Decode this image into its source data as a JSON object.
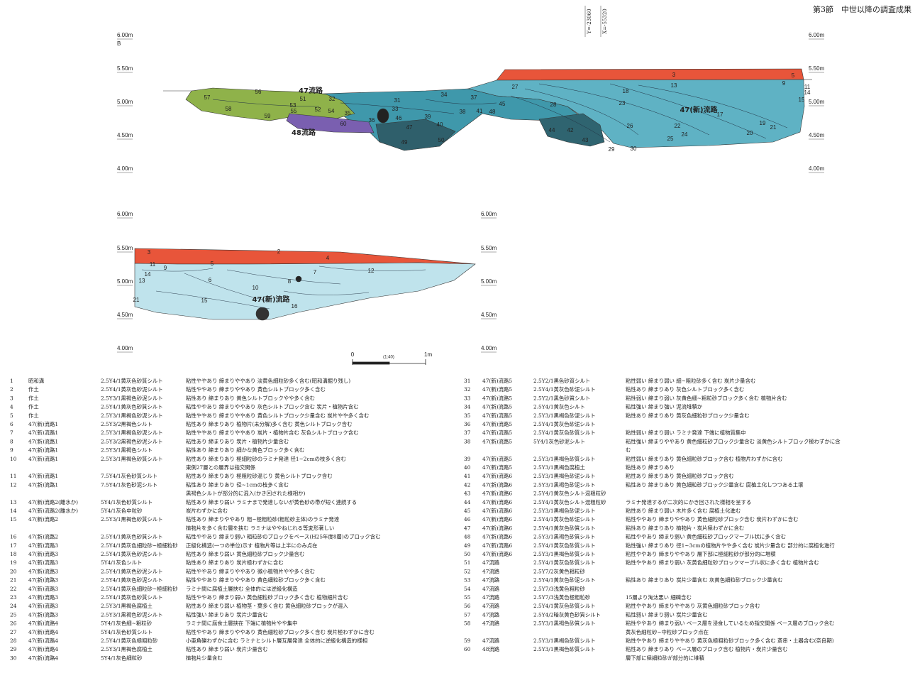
{
  "header": {
    "section": "第3節　中世以降の調査成果"
  },
  "coordinates": [
    "Y=-23060",
    "X=-55320"
  ],
  "section_upper": {
    "point": "B",
    "elevations_left": [
      "6.00m",
      "5.50m",
      "5.00m",
      "4.50m",
      "4.00m"
    ],
    "elevations_right": [
      "6.00m",
      "5.50m",
      "5.00m",
      "4.50m",
      "4.00m"
    ],
    "labels": [
      "3",
      "5",
      "13",
      "9",
      "11",
      "14",
      "15",
      "27",
      "28",
      "18",
      "23",
      "47(新)流路",
      "17",
      "22",
      "26",
      "24",
      "25",
      "20",
      "19",
      "21",
      "44",
      "42",
      "43",
      "29",
      "30",
      "37",
      "34",
      "38",
      "41",
      "48",
      "45",
      "31",
      "32",
      "33",
      "46",
      "39",
      "40",
      "47",
      "50",
      "49",
      "36",
      "35",
      "60",
      "54",
      "52",
      "55",
      "53",
      "51",
      "47流路",
      "56",
      "57",
      "58",
      "59",
      "48流路"
    ]
  },
  "section_lower": {
    "point": "B'",
    "elevations_left": [
      "6.00m",
      "5.50m",
      "5.00m",
      "4.50m",
      "4.00m"
    ],
    "elevations_right": [
      "6.00m",
      "5.50m",
      "5.00m",
      "4.50m",
      "4.00m"
    ],
    "labels": [
      "3",
      "2",
      "4",
      "5",
      "11",
      "9",
      "14",
      "13",
      "6",
      "7",
      "8",
      "12",
      "10",
      "15",
      "47(新)流路",
      "16",
      "21"
    ]
  },
  "scale": {
    "start": "0",
    "ratio": "(1:40)",
    "end": "1m"
  },
  "layers": [
    {
      "no": 1,
      "name": "昭和溝",
      "color": "2.5Y4/1黄灰色砂質シルト",
      "description": [
        "粘性ややあり 締まりややあり 淡黄色細粒砂多く含む(昭和溝掘り残し)"
      ]
    },
    {
      "no": 2,
      "name": "作土",
      "color": "2.5Y4/1黄灰色砂泥シルト",
      "description": [
        "粘性ややあり 締まりややあり 黄色シルトブロック多く含む"
      ]
    },
    {
      "no": 3,
      "name": "作土",
      "color": "2.5Y3/1黒褐色砂泥シルト",
      "description": [
        "粘性あり 締まりあり 黄色シルトブロックやや多く含む"
      ]
    },
    {
      "no": 4,
      "name": "作土",
      "color": "2.5Y4/1黄灰色砂質シルト",
      "description": [
        "粘性ややあり 締まりややあり 灰色シルトブロック含む 炭片・植物片含む"
      ]
    },
    {
      "no": 5,
      "name": "作土",
      "color": "2.5Y3/1黒褐色砂泥シルト",
      "description": [
        "粘性ややあり 締まりややあり 黄色シルトブロック少量含む 炭片やや多く含む"
      ]
    },
    {
      "no": 6,
      "name": "47(新)流路1",
      "color": "2.5Y3/2黒褐色シルト",
      "description": [
        "粘性あり 締まりあり 植物片(未分解)多く含む 黄色シルトブロック含む"
      ]
    },
    {
      "no": 7,
      "name": "47(新)流路1",
      "color": "2.5Y3/1黒褐色砂泥シルト",
      "description": [
        "粘性ややあり 締まりややあり 炭片・植物片含む 灰色シルトブロック含む"
      ]
    },
    {
      "no": 8,
      "name": "47(新)流路1",
      "color": "2.5Y3/2黒褐色砂泥シルト",
      "description": [
        "粘性あり 締まりあり 炭片・植物片少量含む"
      ]
    },
    {
      "no": 9,
      "name": "47(新)流路1",
      "color": "2.5Y3/1黒褐色シルト",
      "description": [
        "粘性あり 締まりあり 細かな黄色ブロック多く含む"
      ]
    },
    {
      "no": 10,
      "name": "47(新)流路1",
      "color": "2.5Y3/1黒褐色砂質シルト",
      "description": [
        "粘性あり 締まりあり 極細粒砂のラミナ発達 径1~2cmの枝多く含む",
        "東側27層との層界は指交関係"
      ]
    },
    {
      "no": 11,
      "name": "47(新)流路1",
      "color": "7.5Y4/1灰色砂質シルト",
      "description": [
        "粘性あり 締まりあり 極粗粒砂混じり 黄色シルトブロック含む"
      ]
    },
    {
      "no": 12,
      "name": "47(新)流路1",
      "color": "7.5Y4/1灰色砂泥シルト",
      "description": [
        "粘性あり 締まりあり 径~1cmの枝多く含む",
        "黒褐色シルトが部分的に混入(かき回された様相か)"
      ]
    },
    {
      "no": 13,
      "name": "47(新)流路2(離水か)",
      "color": "5Y4/1灰色砂質シルト",
      "description": [
        "粘性あり 締まり弱い ラミナまで発達しないが黄色砂の帯が短く連続する"
      ]
    },
    {
      "no": 14,
      "name": "47(新)流路2(離水か)",
      "color": "5Y4/1灰色中粒砂",
      "description": [
        "炭片わずかに含む"
      ]
    },
    {
      "no": 15,
      "name": "47(新)流路2",
      "color": "2.5Y3/1黒褐色砂質シルト",
      "description": [
        "粘性あり 締まりややあり 粗~極粗粒砂(粗粒砂主体)のラミナ発達",
        "植物片を多く含む層を挟む ラミナはややねじれる等変形著しい"
      ]
    },
    {
      "no": 16,
      "name": "47(新)流路2",
      "color": "2.5Y4/1黄灰色砂質シルト",
      "description": [
        "粘性ややあり 締まり弱い 粗粒砂のブロックをベース(H25年度8層)のブロック含む"
      ]
    },
    {
      "no": 17,
      "name": "47(新)流路3",
      "color": "2.5Y4/1黄灰色細粒砂~極細粒砂",
      "description": [
        "正級化構造(一つの単位)示す 植物片等は上半にのみ点在"
      ]
    },
    {
      "no": 18,
      "name": "47(新)流路3",
      "color": "2.5Y4/1黄灰色砂泥シルト",
      "description": [
        "粘性あり 締まり弱い 黄色細粒砂ブロック少量含む"
      ]
    },
    {
      "no": 19,
      "name": "47(新)流路3",
      "color": "5Y4/1灰色シルト",
      "description": [
        "粘性あり 締まりあり 炭片極わずかに含む"
      ]
    },
    {
      "no": 20,
      "name": "47(新)流路3",
      "color": "2.5Y4/1黄灰色砂泥シルト",
      "description": [
        "粘性ややあり 締まりややあり 微小植物片やや多く含む"
      ]
    },
    {
      "no": 21,
      "name": "47(新)流路3",
      "color": "2.5Y4/1黄灰色砂泥シルト",
      "description": [
        "粘性ややあり 締まりややあり 黄色細粒砂ブロック多く含む"
      ]
    },
    {
      "no": 22,
      "name": "47(新)流路3",
      "color": "2.5Y4/1黄灰色細粒砂~極細粒砂",
      "description": [
        "ラミナ間に腐植土層挟む 全体的には逆級化構造"
      ]
    },
    {
      "no": 23,
      "name": "47(新)流路3",
      "color": "2.5Y4/1黄灰色砂質シルト",
      "description": [
        "粘性ややあり 締まり弱い 黄色細粒砂ブロック多く含む 植物細片含む"
      ]
    },
    {
      "no": 24,
      "name": "47(新)流路3",
      "color": "2.5Y3/1黒褐色腐植土",
      "description": [
        "粘性あり 締まり弱い 植物茎・葉多く含む 黄色細粒砂ブロックが混入"
      ]
    },
    {
      "no": 25,
      "name": "47(新)流路3",
      "color": "2.5Y3/1黒褐色砂泥シルト",
      "description": [
        "粘性強い 締まりあり 炭片少量含む"
      ]
    },
    {
      "no": 26,
      "name": "47(新)流路4",
      "color": "5Y4/1灰色細~粗粒砂",
      "description": [
        "ラミナ間に腐食土層挟在 下端に植物片やや集中"
      ]
    },
    {
      "no": 27,
      "name": "47(新)流路4",
      "color": "5Y4/1灰色砂質シルト",
      "description": [
        "粘性ややあり 締まりややあり 黄色細粒砂ブロック多く含む 炭片極わずかに含む"
      ]
    },
    {
      "no": 28,
      "name": "47(新)流路4",
      "color": "2.5Y4/1黄灰色極粗粒砂",
      "description": [
        "小亜角礫わずかに含む ラミナとシルト層互層発達 全体的に逆級化構造的様相"
      ]
    },
    {
      "no": 29,
      "name": "47(新)流路4",
      "color": "2.5Y3/1黒褐色腐植土",
      "description": [
        "粘性あり 締まり弱い 炭片少量含む"
      ]
    },
    {
      "no": 30,
      "name": "47(新)流路4",
      "color": "5Y4/1灰色細粒砂",
      "description": [
        "植物片少量含む"
      ]
    },
    {
      "no": 31,
      "name": "47(新)流路5",
      "color": "2.5Y2/1黒色砂質シルト",
      "description": [
        "粘性弱い 締まり弱い 細~粗粒砂多く含む 炭片少量含む"
      ]
    },
    {
      "no": 32,
      "name": "47(新)流路5",
      "color": "2.5Y4/1黄灰色砂泥シルト",
      "description": [
        "粘性あり 締まりあり 灰色シルトブロック多く含む"
      ]
    },
    {
      "no": 33,
      "name": "47(新)流路5",
      "color": "2.5Y2/1黒色砂質シルト",
      "description": [
        "粘性弱い 締まり弱い 灰黄色細~粗粒砂ブロック多く含む 植物片含む"
      ]
    },
    {
      "no": 34,
      "name": "47(新)流路5",
      "color": "2.5Y4/1黄灰色シルト",
      "description": [
        "粘性強い 締まり強い 泥流堆積か"
      ]
    },
    {
      "no": 35,
      "name": "47(新)流路5",
      "color": "2.5Y3/1黒褐色砂泥シルト",
      "description": [
        "粘性あり 締まりあり 黄灰色細粒砂ブロック少量含む"
      ]
    },
    {
      "no": 36,
      "name": "47(新)流路5",
      "color": "2.5Y4/1黄灰色砂泥シルト",
      "description": []
    },
    {
      "no": 37,
      "name": "47(新)流路5",
      "color": "2.5Y4/1黄灰色砂質シルト",
      "description": [
        "粘性弱い 締まり弱い ラミナ発達 下端に植物質集中"
      ]
    },
    {
      "no": 38,
      "name": "47(新)流路5",
      "color": "5Y4/1灰色砂泥シルト",
      "description": [
        "粘性強い 締まりややあり 黄色細粒砂ブロック少量含む 淡黄色シルトブロック極わずかに含",
        "む"
      ]
    },
    {
      "no": 39,
      "name": "47(新)流路5",
      "color": "2.5Y3/1黒褐色砂質シルト",
      "description": [
        "粘性弱い 締まりあり 黄色細粒砂ブロック含む 植物片わずかに含む"
      ]
    },
    {
      "no": 40,
      "name": "47(新)流路5",
      "color": "2.5Y3/1黒褐色腐植土",
      "description": [
        "粘性あり 締まりあり"
      ]
    },
    {
      "no": 41,
      "name": "47(新)流路6",
      "color": "2.5Y3/1黒褐色砂泥シルト",
      "description": [
        "粘性あり 締まりあり 黄色細粒砂ブロック含む"
      ]
    },
    {
      "no": 42,
      "name": "47(新)流路6",
      "color": "2.5Y3/1黒褐色砂泥シルト",
      "description": [
        "粘性あり 締まりあり 黄色細粒砂ブロック少量含む 腐植土化しつつある土壌"
      ]
    },
    {
      "no": 43,
      "name": "47(新)流路6",
      "color": "2.5Y4/1黄灰色シルト混粗粒砂",
      "description": []
    },
    {
      "no": 44,
      "name": "47(新)流路6",
      "color": "2.5Y4/1黄灰色シルト混粗粒砂",
      "description": [
        "ラミナ発達するが二次的にかき回された様相を呈する"
      ]
    },
    {
      "no": 45,
      "name": "47(新)流路6",
      "color": "2.5Y3/1黒褐色砂泥シルト",
      "description": [
        "粘性あり 締まり弱い 木片多く含む 腐植土化進む"
      ]
    },
    {
      "no": 46,
      "name": "47(新)流路6",
      "color": "2.5Y4/1黄灰色砂泥シルト",
      "description": [
        "粘性ややあり 締まりややあり 黄色細粒砂ブロック含む 炭片わずかに含む"
      ]
    },
    {
      "no": 47,
      "name": "47(新)流路6",
      "color": "2.5Y4/1黄灰色砂質シルト",
      "description": [
        "粘性あり 締まりあり 植物片・炭片極わずかに含む"
      ]
    },
    {
      "no": 48,
      "name": "47(新)流路6",
      "color": "2.5Y3/1黒褐色砂質シルト",
      "description": [
        "粘性ややあり 締まり弱い 黄色細粒砂ブロックマーブル状に多く含む"
      ]
    },
    {
      "no": 49,
      "name": "47(新)流路6",
      "color": "2.5Y4/1黄灰色砂質シルト",
      "description": [
        "粘性強い 締まりあり 径1~3cmの植物片やや多く含む 炭片少量含む 部分的に腐植化進行"
      ]
    },
    {
      "no": 50,
      "name": "47(新)流路6",
      "color": "2.5Y3/1黒褐色砂質シルト",
      "description": [
        "粘性ややあり 締まりややあり 層下部に極細粒砂が部分的に堆積"
      ]
    },
    {
      "no": 51,
      "name": "47流路",
      "color": "2.5Y4/1黄灰色砂質シルト",
      "description": [
        "粘性ややあり 締まり弱い 灰黄色細粒砂ブロックマーブル状に多く含む 植物片含む"
      ]
    },
    {
      "no": 52,
      "name": "47流路",
      "color": "2.5Y7/2灰黄色粗粒砂",
      "description": []
    },
    {
      "no": 53,
      "name": "47流路",
      "color": "2.5Y4/1黄灰色砂泥シルト",
      "description": [
        "粘性あり 締まりあり 炭片少量含む 灰黄色細粒砂ブロック少量含む"
      ]
    },
    {
      "no": 54,
      "name": "47流路",
      "color": "2.5Y7/3浅黄色粗粒砂",
      "description": []
    },
    {
      "no": 55,
      "name": "47流路",
      "color": "2.5Y7/3浅黄色極粗粒砂",
      "description": [
        "15層より淘汰悪い 細礫含む"
      ]
    },
    {
      "no": 56,
      "name": "47流路",
      "color": "2.5Y4/1黄灰色砂質シルト",
      "description": [
        "粘性ややあり 締まりややあり 灰黄色細粒砂ブロック含む"
      ]
    },
    {
      "no": 57,
      "name": "47流路",
      "color": "2.5Y4/2暗灰黄色砂質シルト",
      "description": [
        "粘性弱い 締まり弱い 炭片少量含む"
      ]
    },
    {
      "no": 58,
      "name": "47流路",
      "color": "2.5Y3/1黒褐色砂質シルト",
      "description": [
        "粘性ややあり 締まり弱い ベース層を浸食しているため指交関係 ベース層のブロック含む",
        "黄灰色細粒砂~中粒砂ブロック点在"
      ]
    },
    {
      "no": 59,
      "name": "47流路",
      "color": "2.5Y3/1黒褐色砂質シルト",
      "description": [
        "粘性ややあり 締まりややあり 黄灰色極粗粒砂ブロック多く含む 斎串・土器含む(奈良期)"
      ]
    },
    {
      "no": 60,
      "name": "48流路",
      "color": "2.5Y3/1黒褐色砂質シルト",
      "description": [
        "粘性あり 締まりあり ベース層のブロック含む 植物片・炭片少量含む",
        "層下部に極細粒砂が部分的に堆積"
      ]
    }
  ]
}
